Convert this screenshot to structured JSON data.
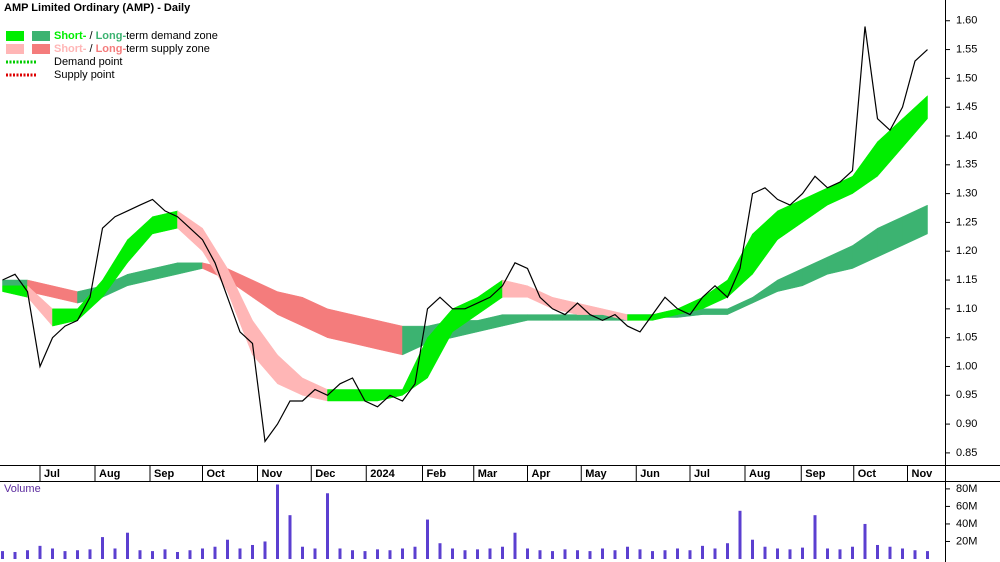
{
  "chart_data": [
    {
      "type": "line",
      "title": "AMP Limited Ordinary (AMP) - Daily",
      "color": "#000000",
      "x": [
        -3,
        -2,
        -1,
        0,
        1,
        2,
        3,
        4,
        5,
        6,
        7,
        8,
        9,
        10,
        11,
        12,
        13,
        14,
        15,
        16,
        17,
        18,
        19,
        20,
        21,
        22,
        23,
        24,
        25,
        26,
        27,
        28,
        29,
        30,
        31,
        32,
        33,
        34,
        35,
        36,
        37,
        38,
        39,
        40,
        41,
        42,
        43,
        44,
        45,
        46,
        47,
        48,
        49,
        50,
        51,
        52,
        53,
        54,
        55,
        56,
        57,
        58,
        59,
        60,
        61,
        62,
        63,
        64,
        65,
        66,
        67,
        68,
        69,
        70,
        71
      ],
      "values": [
        1.15,
        1.16,
        1.13,
        1.0,
        1.05,
        1.07,
        1.08,
        1.12,
        1.24,
        1.26,
        1.27,
        1.28,
        1.29,
        1.27,
        1.26,
        1.24,
        1.22,
        1.18,
        1.12,
        1.06,
        1.04,
        0.87,
        0.9,
        0.94,
        0.94,
        0.96,
        0.95,
        0.97,
        0.98,
        0.94,
        0.93,
        0.95,
        0.94,
        0.97,
        1.1,
        1.12,
        1.1,
        1.1,
        1.11,
        1.12,
        1.14,
        1.18,
        1.17,
        1.12,
        1.1,
        1.09,
        1.11,
        1.09,
        1.08,
        1.09,
        1.07,
        1.06,
        1.09,
        1.12,
        1.1,
        1.09,
        1.12,
        1.14,
        1.12,
        1.17,
        1.3,
        1.31,
        1.29,
        1.28,
        1.3,
        1.33,
        1.31,
        1.32,
        1.34,
        1.59,
        1.43,
        1.41,
        1.45,
        1.53,
        1.55
      ],
      "xlim": [
        -3.2,
        72.4
      ],
      "xticks": [
        {
          "value": 0,
          "label": "Jul"
        },
        {
          "value": 4.4,
          "label": "Aug"
        },
        {
          "value": 8.8,
          "label": "Sep"
        },
        {
          "value": 13.0,
          "label": "Oct"
        },
        {
          "value": 17.4,
          "label": "Nov"
        },
        {
          "value": 21.7,
          "label": "Dec"
        },
        {
          "value": 26.1,
          "label": "2024"
        },
        {
          "value": 30.6,
          "label": "Feb"
        },
        {
          "value": 34.7,
          "label": "Mar"
        },
        {
          "value": 39.0,
          "label": "Apr"
        },
        {
          "value": 43.3,
          "label": "May"
        },
        {
          "value": 47.7,
          "label": "Jun"
        },
        {
          "value": 52.0,
          "label": "Jul"
        },
        {
          "value": 56.4,
          "label": "Aug"
        },
        {
          "value": 60.9,
          "label": "Sep"
        },
        {
          "value": 65.1,
          "label": "Oct"
        },
        {
          "value": 69.4,
          "label": "Nov"
        }
      ],
      "ylim": [
        0.829,
        1.636
      ],
      "yticks": [
        0.85,
        {
          "value": 0.9,
          "label": "0.90"
        },
        0.95,
        {
          "value": 1,
          "label": "1.00"
        },
        1.05,
        {
          "value": 1.1,
          "label": "1.10"
        },
        1.15,
        {
          "value": 1.2,
          "label": "1.20"
        },
        1.25,
        {
          "value": 1.3,
          "label": "1.30"
        },
        1.35,
        {
          "value": 1.4,
          "label": "1.40"
        },
        1.45,
        {
          "value": 1.5,
          "label": "1.50"
        },
        1.55,
        {
          "value": 1.6,
          "label": "1.60"
        }
      ],
      "zones": [
        {
          "demand_color": "#3cb371",
          "supply_color": "#f47c7c",
          "x": [
            -3,
            -1,
            1,
            3,
            5,
            7,
            9,
            11,
            13,
            15,
            17,
            19,
            21,
            23,
            25,
            27,
            29,
            31,
            33,
            35,
            37,
            39,
            41,
            43,
            45,
            47,
            49,
            51,
            53,
            55,
            57,
            59,
            61,
            63,
            65,
            67,
            69,
            71
          ],
          "upper": [
            1.15,
            1.15,
            1.14,
            1.13,
            1.14,
            1.16,
            1.17,
            1.18,
            1.18,
            1.17,
            1.15,
            1.13,
            1.12,
            1.1,
            1.09,
            1.08,
            1.07,
            1.07,
            1.08,
            1.08,
            1.09,
            1.09,
            1.09,
            1.09,
            1.09,
            1.09,
            1.09,
            1.09,
            1.1,
            1.1,
            1.12,
            1.15,
            1.17,
            1.19,
            1.21,
            1.24,
            1.26,
            1.28
          ],
          "lower": [
            1.14,
            1.13,
            1.12,
            1.11,
            1.12,
            1.14,
            1.15,
            1.16,
            1.17,
            1.15,
            1.12,
            1.09,
            1.07,
            1.05,
            1.04,
            1.03,
            1.02,
            1.04,
            1.05,
            1.06,
            1.07,
            1.08,
            1.08,
            1.08,
            1.08,
            1.08,
            1.085,
            1.085,
            1.09,
            1.09,
            1.11,
            1.13,
            1.14,
            1.16,
            1.17,
            1.19,
            1.21,
            1.23
          ]
        },
        {
          "demand_color": "#00ee00",
          "supply_color": "#ffb6b6",
          "x": [
            -3,
            -1,
            1,
            3,
            5,
            7,
            9,
            11,
            13,
            15,
            17,
            19,
            21,
            23,
            25,
            27,
            29,
            31,
            33,
            35,
            37,
            39,
            41,
            43,
            45,
            47,
            49,
            51,
            53,
            55,
            57,
            59,
            61,
            63,
            65,
            67,
            69,
            71
          ],
          "upper": [
            1.14,
            1.14,
            1.1,
            1.1,
            1.15,
            1.22,
            1.26,
            1.27,
            1.24,
            1.17,
            1.08,
            1.02,
            0.98,
            0.96,
            0.96,
            0.96,
            0.96,
            1.05,
            1.1,
            1.12,
            1.15,
            1.14,
            1.12,
            1.11,
            1.1,
            1.09,
            1.09,
            1.1,
            1.12,
            1.15,
            1.23,
            1.27,
            1.29,
            1.31,
            1.33,
            1.39,
            1.43,
            1.47
          ],
          "lower": [
            1.13,
            1.12,
            1.07,
            1.08,
            1.12,
            1.18,
            1.23,
            1.24,
            1.2,
            1.13,
            1.02,
            0.97,
            0.95,
            0.94,
            0.94,
            0.94,
            0.95,
            0.98,
            1.06,
            1.09,
            1.12,
            1.12,
            1.1,
            1.09,
            1.09,
            1.08,
            1.08,
            1.09,
            1.1,
            1.12,
            1.16,
            1.22,
            1.25,
            1.28,
            1.3,
            1.33,
            1.38,
            1.43
          ]
        }
      ],
      "legend": {
        "separator": " / ",
        "items": [
          {
            "short": "Short-",
            "long": "Long-",
            "text": "term demand zone"
          },
          {
            "short": "Short-",
            "long": "Long-",
            "text": "term supply zone"
          },
          {
            "text": "Demand point",
            "color": "#00cc00"
          },
          {
            "text": "Supply point",
            "color": "#dd0000"
          }
        ]
      }
    },
    {
      "type": "bar",
      "title": "Volume",
      "color": "#5b3fd0",
      "x": [
        -3,
        -2,
        -1,
        0,
        1,
        2,
        3,
        4,
        5,
        6,
        7,
        8,
        9,
        10,
        11,
        12,
        13,
        14,
        15,
        16,
        17,
        18,
        19,
        20,
        21,
        22,
        23,
        24,
        25,
        26,
        27,
        28,
        29,
        30,
        31,
        32,
        33,
        34,
        35,
        36,
        37,
        38,
        39,
        40,
        41,
        42,
        43,
        44,
        45,
        46,
        47,
        48,
        49,
        50,
        51,
        52,
        53,
        54,
        55,
        56,
        57,
        58,
        59,
        60,
        61,
        62,
        63,
        64,
        65,
        66,
        67,
        68,
        69,
        70,
        71
      ],
      "values": [
        9000000,
        8000000,
        10000000,
        15000000,
        12000000,
        9000000,
        10000000,
        11000000,
        25000000,
        12000000,
        30000000,
        10000000,
        9000000,
        11000000,
        8000000,
        10000000,
        12000000,
        14000000,
        22000000,
        12000000,
        16000000,
        20000000,
        85000000,
        50000000,
        14000000,
        12000000,
        75000000,
        12000000,
        10000000,
        9000000,
        11000000,
        10000000,
        12000000,
        14000000,
        45000000,
        18000000,
        12000000,
        10000000,
        11000000,
        12000000,
        14000000,
        30000000,
        12000000,
        10000000,
        9000000,
        11000000,
        10000000,
        9000000,
        12000000,
        10000000,
        14000000,
        11000000,
        9000000,
        10000000,
        12000000,
        10000000,
        15000000,
        12000000,
        18000000,
        55000000,
        22000000,
        14000000,
        12000000,
        11000000,
        13000000,
        50000000,
        12000000,
        11000000,
        14000000,
        40000000,
        16000000,
        14000000,
        12000000,
        10000000,
        9000000
      ],
      "ylim": [
        0,
        89000000
      ],
      "yticks": [
        {
          "value": 20000000,
          "label": "20M"
        },
        {
          "value": 40000000,
          "label": "40M"
        },
        {
          "value": 60000000,
          "label": "60M"
        },
        {
          "value": 80000000,
          "label": "80M"
        }
      ]
    }
  ]
}
